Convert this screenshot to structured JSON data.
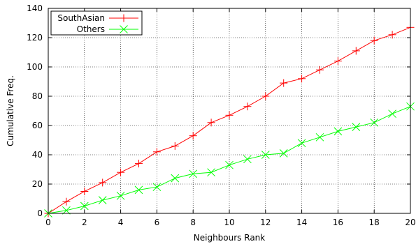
{
  "chart_data": {
    "type": "line",
    "xlabel": "Neighbours Rank",
    "ylabel": "Cumulative Freq.",
    "xlim": [
      0,
      20
    ],
    "ylim": [
      0,
      140
    ],
    "xticks": [
      0,
      2,
      4,
      6,
      8,
      10,
      12,
      14,
      16,
      18,
      20
    ],
    "yticks": [
      0,
      20,
      40,
      60,
      80,
      100,
      120,
      140
    ],
    "grid": true,
    "grid_style": "dotted",
    "legend_position": "top-left",
    "series": [
      {
        "name": "SouthAsian",
        "color": "#ff0000",
        "marker": "plus",
        "x": [
          0,
          1,
          2,
          3,
          4,
          5,
          6,
          7,
          8,
          9,
          10,
          11,
          12,
          13,
          14,
          15,
          16,
          17,
          18,
          19,
          20
        ],
        "y": [
          0,
          8,
          15,
          21,
          28,
          34,
          42,
          46,
          53,
          62,
          67,
          73,
          80,
          89,
          92,
          98,
          104,
          111,
          118,
          122,
          127
        ]
      },
      {
        "name": "Others",
        "color": "#00ff00",
        "marker": "cross",
        "x": [
          0,
          1,
          2,
          3,
          4,
          5,
          6,
          7,
          8,
          9,
          10,
          11,
          12,
          13,
          14,
          15,
          16,
          17,
          18,
          19,
          20
        ],
        "y": [
          0,
          2,
          5,
          9,
          12,
          16,
          18,
          24,
          27,
          28,
          33,
          37,
          40,
          41,
          48,
          52,
          56,
          59,
          62,
          68,
          73
        ]
      }
    ]
  }
}
